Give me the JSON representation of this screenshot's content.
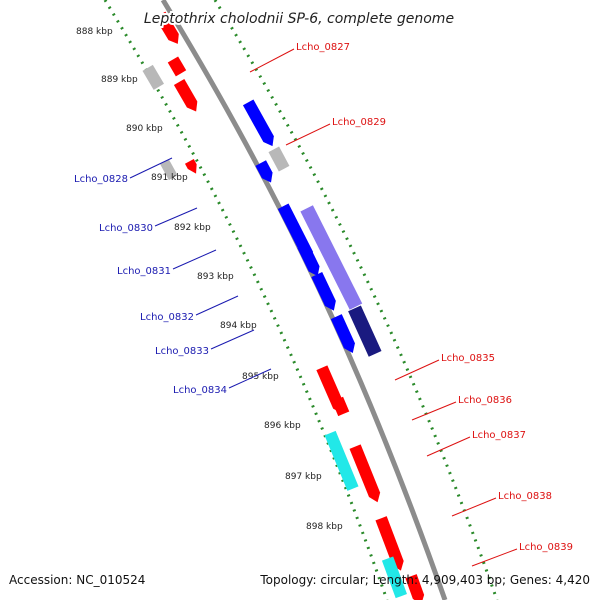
{
  "title": "Leptothrix cholodnii SP-6, complete genome",
  "footer": {
    "accession": "Accession: NC_010524",
    "summary": "Topology: circular; Length: 4,909,403 bp; Genes: 4,420"
  },
  "ticks": [
    "888 kbp",
    "889 kbp",
    "890 kbp",
    "891 kbp",
    "892 kbp",
    "893 kbp",
    "894 kbp",
    "895 kbp",
    "896 kbp",
    "897 kbp",
    "898 kbp"
  ],
  "colors": {
    "backbone": "#8c8c8c",
    "tick_ring": "#2a8a2a",
    "forward_gene": "#ff0000",
    "forward_label": "#dd1111",
    "reverse_gene": "#0000ff",
    "reverse_label": "#1a1ab0",
    "other_gene": "#b8b8b8",
    "cds_light": "#8877ee",
    "cds_dark": "#1a1a80",
    "rna": "#22e8e8"
  },
  "genes": [
    {
      "label": "Lcho_0827",
      "strand": "forward"
    },
    {
      "label": "Lcho_0828",
      "strand": "reverse"
    },
    {
      "label": "Lcho_0829",
      "strand": "forward"
    },
    {
      "label": "Lcho_0830",
      "strand": "reverse"
    },
    {
      "label": "Lcho_0831",
      "strand": "reverse"
    },
    {
      "label": "Lcho_0832",
      "strand": "reverse"
    },
    {
      "label": "Lcho_0833",
      "strand": "reverse"
    },
    {
      "label": "Lcho_0834",
      "strand": "reverse"
    },
    {
      "label": "Lcho_0835",
      "strand": "forward"
    },
    {
      "label": "Lcho_0836",
      "strand": "forward"
    },
    {
      "label": "Lcho_0837",
      "strand": "forward"
    },
    {
      "label": "Lcho_0838",
      "strand": "forward"
    },
    {
      "label": "Lcho_0839",
      "strand": "forward"
    }
  ]
}
